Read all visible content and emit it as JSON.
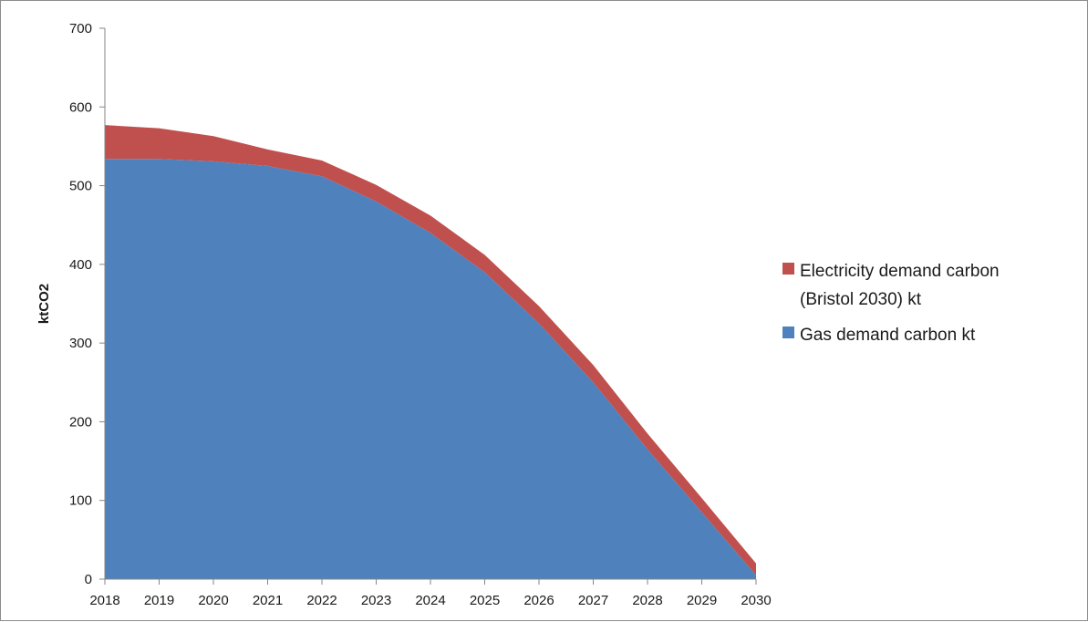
{
  "chart_data": {
    "type": "area",
    "stacked": true,
    "title": "",
    "xlabel": "",
    "ylabel": "ktCO2",
    "ylim": [
      0,
      700
    ],
    "yticks": [
      0,
      100,
      200,
      300,
      400,
      500,
      600,
      700
    ],
    "x": [
      "2018",
      "2019",
      "2020",
      "2021",
      "2022",
      "2023",
      "2024",
      "2025",
      "2026",
      "2027",
      "2028",
      "2029",
      "2030"
    ],
    "grid": false,
    "legend_position": "right",
    "series": [
      {
        "name": "Gas demand carbon kt",
        "color": "#4f81bd",
        "values": [
          534,
          534,
          531,
          525,
          512,
          480,
          440,
          390,
          325,
          250,
          165,
          85,
          5
        ]
      },
      {
        "name": "Electricity demand carbon (Bristol 2030) kt",
        "color": "#c0504d",
        "values": [
          43,
          39,
          32,
          21,
          20,
          21,
          22,
          22,
          22,
          22,
          20,
          18,
          15
        ]
      }
    ],
    "legend": [
      {
        "lines": [
          "Electricity demand carbon",
          "(Bristol 2030) kt"
        ],
        "color": "#c0504d",
        "icon": "square-swatch"
      },
      {
        "lines": [
          "Gas demand carbon kt"
        ],
        "color": "#4f81bd",
        "icon": "square-swatch"
      }
    ]
  }
}
